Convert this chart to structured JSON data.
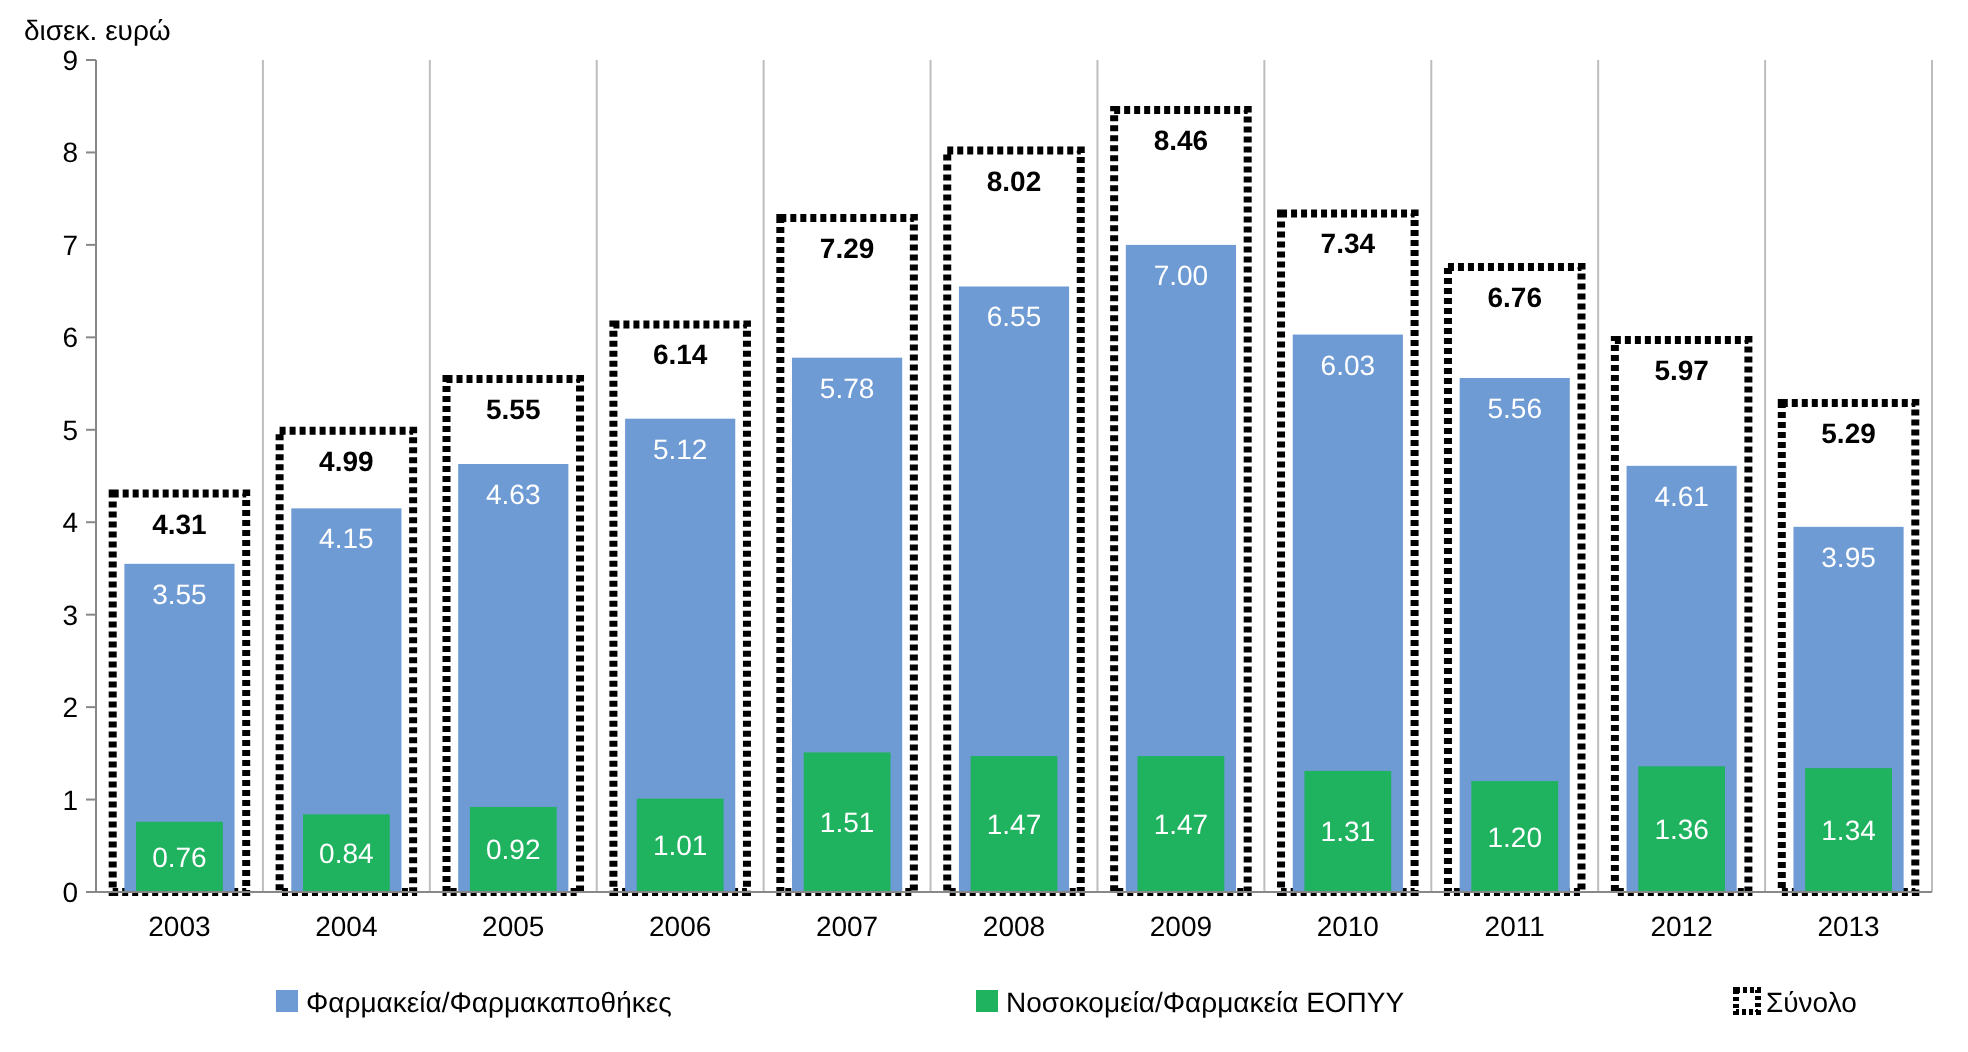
{
  "chart_data": {
    "type": "bar",
    "ylabel": "δισεκ. ευρώ",
    "categories": [
      "2003",
      "2004",
      "2005",
      "2006",
      "2007",
      "2008",
      "2009",
      "2010",
      "2011",
      "2012",
      "2013"
    ],
    "series": [
      {
        "name": "Σύνολο",
        "color": "#ffffff",
        "line_style": "dotted",
        "values": [
          4.31,
          4.99,
          5.55,
          6.14,
          7.29,
          8.02,
          8.46,
          7.34,
          6.76,
          5.97,
          5.29
        ],
        "value_labels": [
          "4.31",
          "4.99",
          "5.55",
          "6.14",
          "7.29",
          "8.02",
          "8.46",
          "7.34",
          "6.76",
          "5.97",
          "5.29"
        ]
      },
      {
        "name": "Φαρμακεία/Φαρμακαποθήκες",
        "color": "#6f9bd4",
        "values": [
          3.55,
          4.15,
          4.63,
          5.12,
          5.78,
          6.55,
          7.0,
          6.03,
          5.56,
          4.61,
          3.95
        ],
        "value_labels": [
          "3.55",
          "4.15",
          "4.63",
          "5.12",
          "5.78",
          "6.55",
          "7.00",
          "6.03",
          "5.56",
          "4.61",
          "3.95"
        ]
      },
      {
        "name": "Νοσοκομεία/Φαρμακεία ΕΟΠΥΥ",
        "color": "#1fb25f",
        "values": [
          0.76,
          0.84,
          0.92,
          1.01,
          1.51,
          1.47,
          1.47,
          1.31,
          1.2,
          1.36,
          1.34
        ],
        "value_labels": [
          "0.76",
          "0.84",
          "0.92",
          "1.01",
          "1.51",
          "1.47",
          "1.47",
          "1.31",
          "1.20",
          "1.36",
          "1.34"
        ]
      }
    ],
    "ylim": [
      0,
      9
    ],
    "yticks": [
      0,
      1,
      2,
      3,
      4,
      5,
      6,
      7,
      8,
      9
    ],
    "grid": "x",
    "legend": "bottom"
  }
}
